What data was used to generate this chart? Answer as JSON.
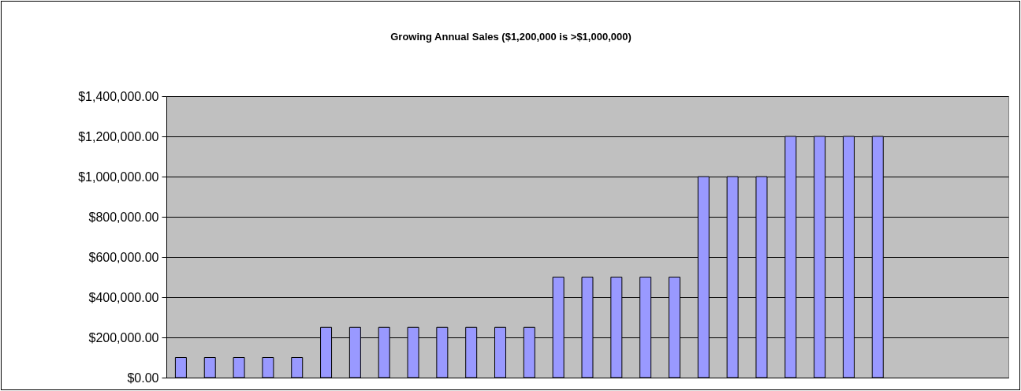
{
  "chart_data": {
    "type": "bar",
    "title": "Growing Annual Sales ($1,200,000 is >$1,000,000)",
    "categories": [
      null,
      null,
      null,
      null,
      null,
      null,
      null,
      null,
      null,
      null,
      null,
      null,
      null,
      null,
      null,
      null,
      null,
      null,
      null,
      null,
      null,
      null,
      null,
      null,
      null,
      null,
      null,
      null,
      null
    ],
    "values": [
      100000,
      100000,
      100000,
      100000,
      100000,
      250000,
      250000,
      250000,
      250000,
      250000,
      250000,
      250000,
      250000,
      500000,
      500000,
      500000,
      500000,
      500000,
      1000000,
      1000000,
      1000000,
      1200000,
      1200000,
      1200000,
      1200000,
      null,
      null,
      null,
      null
    ],
    "color": "#9999ff",
    "ylim": [
      0,
      1400000
    ],
    "yticks": [
      {
        "value": 0,
        "label": "$0.00"
      },
      {
        "value": 200000,
        "label": "$200,000.00"
      },
      {
        "value": 400000,
        "label": "$400,000.00"
      },
      {
        "value": 600000,
        "label": "$600,000.00"
      },
      {
        "value": 800000,
        "label": "$800,000.00"
      },
      {
        "value": 1000000,
        "label": "$1,000,000.00"
      },
      {
        "value": 1200000,
        "label": "$1,200,000.00"
      },
      {
        "value": 1400000,
        "label": "$1,400,000.00"
      }
    ],
    "grid": "y",
    "tick_labels": "y"
  }
}
